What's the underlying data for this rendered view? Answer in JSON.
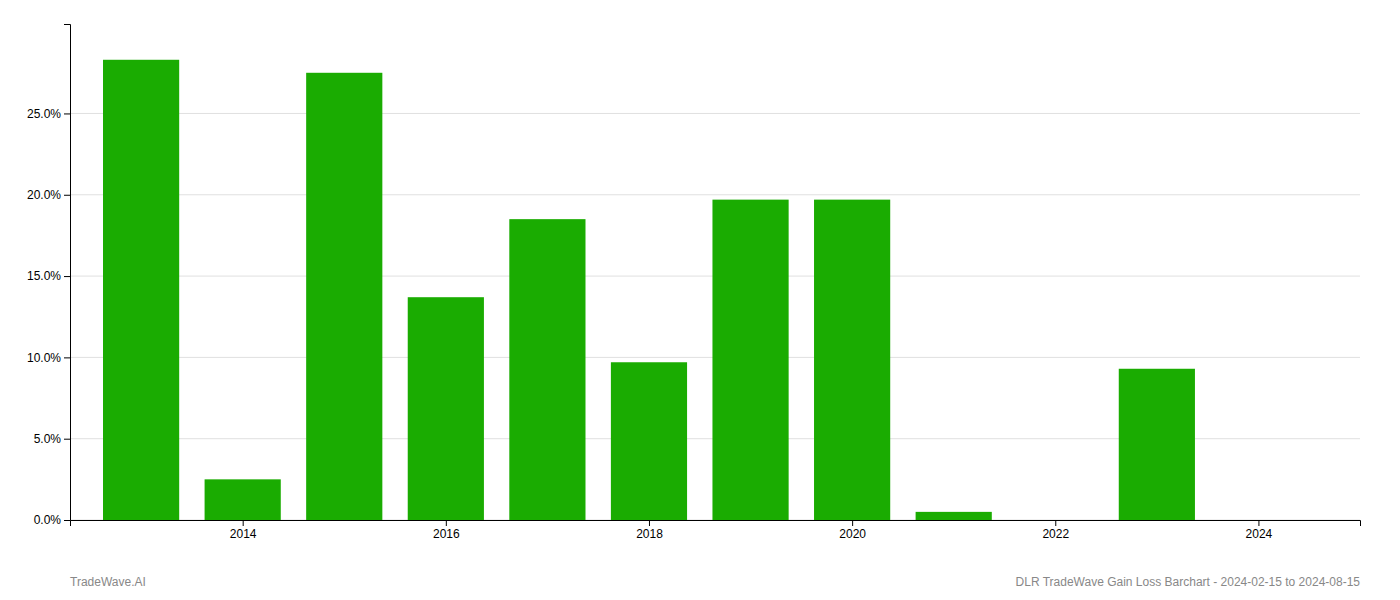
{
  "chart_data": {
    "type": "bar",
    "x": [
      2013,
      2014,
      2015,
      2016,
      2017,
      2018,
      2019,
      2020,
      2021,
      2022,
      2023
    ],
    "values": [
      0.283,
      0.025,
      0.275,
      0.137,
      0.185,
      0.097,
      0.197,
      0.197,
      0.005,
      0.0,
      0.093
    ],
    "color": "#1aac01",
    "xlim": [
      2012.3,
      2025.0
    ],
    "xticks": [
      2014,
      2016,
      2018,
      2020,
      2022,
      2024
    ],
    "ylim": [
      0,
      0.305
    ],
    "yticks": [
      {
        "value": 0.0,
        "label": "0.0%"
      },
      {
        "value": 0.05,
        "label": "5.0%"
      },
      {
        "value": 0.1,
        "label": "10.0%"
      },
      {
        "value": 0.15,
        "label": "15.0%"
      },
      {
        "value": 0.2,
        "label": "20.0%"
      },
      {
        "value": 0.25,
        "label": "25.0%"
      }
    ],
    "grid": true,
    "annotations": [
      "TradeWave.AI",
      "DLR TradeWave Gain Loss Barchart - 2024-02-15 to 2024-08-15"
    ]
  }
}
